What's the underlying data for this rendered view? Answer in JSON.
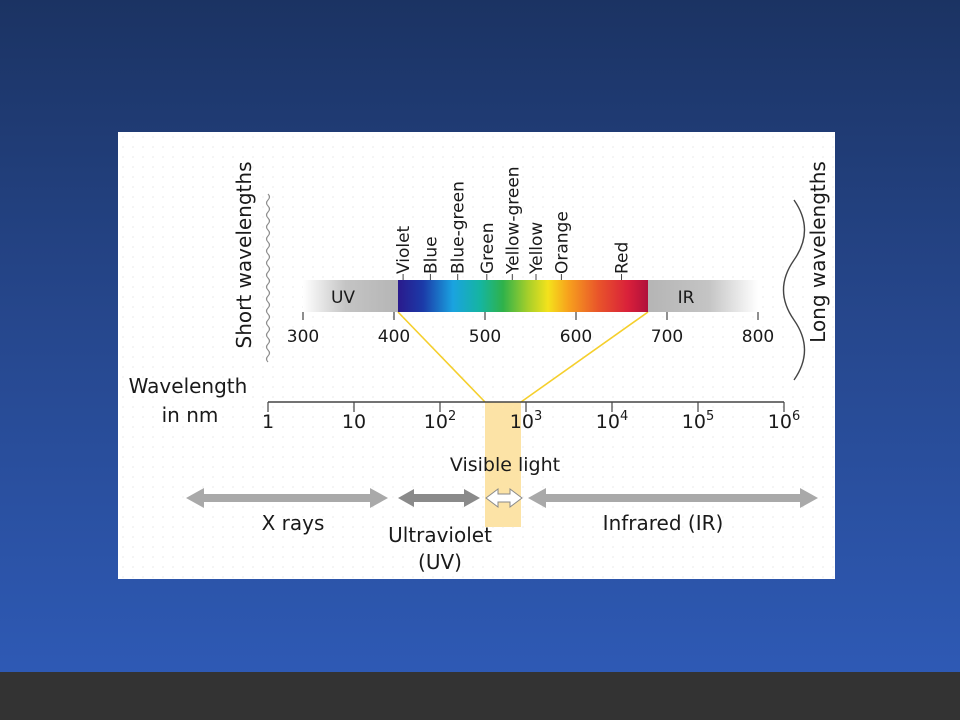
{
  "diagram": {
    "short_wavelengths": "Short wavelengths",
    "long_wavelengths": "Long wavelengths",
    "colors": [
      {
        "name": "Violet",
        "wavelength_nm": 410
      },
      {
        "name": "Blue",
        "wavelength_nm": 440
      },
      {
        "name": "Blue-green",
        "wavelength_nm": 470
      },
      {
        "name": "Green",
        "wavelength_nm": 502
      },
      {
        "name": "Yellow-green",
        "wavelength_nm": 530
      },
      {
        "name": "Yellow",
        "wavelength_nm": 556
      },
      {
        "name": "Orange",
        "wavelength_nm": 584
      },
      {
        "name": "Red",
        "wavelength_nm": 650
      }
    ],
    "spectrum_bar": {
      "uv_label": "UV",
      "ir_label": "IR",
      "range_nm": [
        300,
        800
      ],
      "visible_nm": [
        400,
        700
      ],
      "ticks": [
        {
          "value": 300,
          "label": "300"
        },
        {
          "value": 400,
          "label": "400"
        },
        {
          "value": 500,
          "label": "500"
        },
        {
          "value": 600,
          "label": "600"
        },
        {
          "value": 700,
          "label": "700"
        },
        {
          "value": 800,
          "label": "800"
        }
      ]
    },
    "log_axis": {
      "label_line1": "Wavelength",
      "label_line2": "in nm",
      "scale": "log",
      "ticks": [
        {
          "exponent": 0,
          "base": "1",
          "sup": ""
        },
        {
          "exponent": 1,
          "base": "10",
          "sup": ""
        },
        {
          "exponent": 2,
          "base": "10",
          "sup": "2"
        },
        {
          "exponent": 3,
          "base": "10",
          "sup": "3"
        },
        {
          "exponent": 4,
          "base": "10",
          "sup": "4"
        },
        {
          "exponent": 5,
          "base": "10",
          "sup": "5"
        },
        {
          "exponent": 6,
          "base": "10",
          "sup": "6"
        }
      ]
    },
    "visible_light_label": "Visible light",
    "regions": {
      "xrays": "X rays",
      "uv_line1": "Ultraviolet",
      "uv_line2": "(UV)",
      "ir": "Infrared (IR)"
    },
    "colors_hex": {
      "highlight": "#fce3a6",
      "connector": "#f5cf2c",
      "arrow_gray": "#a9a9a9",
      "arrow_dark": "#8a8a8a"
    }
  }
}
